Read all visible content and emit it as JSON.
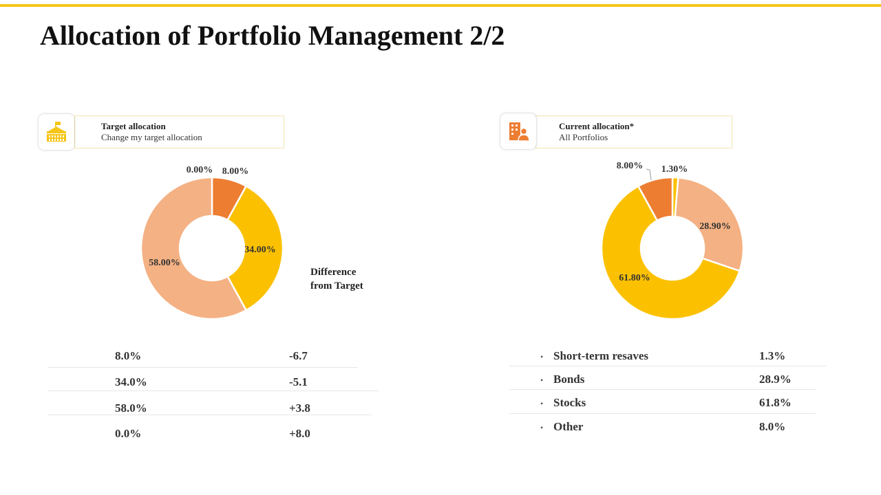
{
  "title": "Allocation of Portfolio Management 2/2",
  "colors": {
    "accent": "#f5c518",
    "orange": "#ed7d31",
    "yellow": "#fbc100",
    "peach": "#f4b183"
  },
  "left_card": {
    "icon": "school-building-icon",
    "title": "Target allocation",
    "subtitle": "Change my target allocation"
  },
  "right_card": {
    "icon": "office-person-icon",
    "title": "Current allocation*",
    "subtitle": "All  Portfolios"
  },
  "difference": {
    "line1": "Difference",
    "line2": "from Target"
  },
  "chart_data": [
    {
      "type": "pie",
      "title": "",
      "series": [
        {
          "label": "0.00%",
          "value": 0.0,
          "color": "#fbc100"
        },
        {
          "label": "8.00%",
          "value": 8.0,
          "color": "#ed7d31"
        },
        {
          "label": "34.00%",
          "value": 34.0,
          "color": "#fbc100"
        },
        {
          "label": "58.00%",
          "value": 58.0,
          "color": "#f4b183"
        }
      ]
    },
    {
      "type": "pie",
      "title": "",
      "series": [
        {
          "label": "1.30%",
          "value": 1.3,
          "color": "#fbc100"
        },
        {
          "label": "28.90%",
          "value": 28.9,
          "color": "#f4b183"
        },
        {
          "label": "61.80%",
          "value": 61.8,
          "color": "#fbc100"
        },
        {
          "label": "8.00%",
          "value": 8.0,
          "color": "#ed7d31"
        }
      ]
    }
  ],
  "target_table": [
    {
      "pct": "8.0%",
      "diff": "-6.7"
    },
    {
      "pct": "34.0%",
      "diff": "-5.1"
    },
    {
      "pct": "58.0%",
      "diff": "+3.8"
    },
    {
      "pct": "0.0%",
      "diff": "+8.0"
    }
  ],
  "current_table": [
    {
      "name": "Short-term resaves",
      "pct": "1.3%"
    },
    {
      "name": "Bonds",
      "pct": "28.9%"
    },
    {
      "name": "Stocks",
      "pct": "61.8%"
    },
    {
      "name": "Other",
      "pct": "8.0%"
    }
  ]
}
